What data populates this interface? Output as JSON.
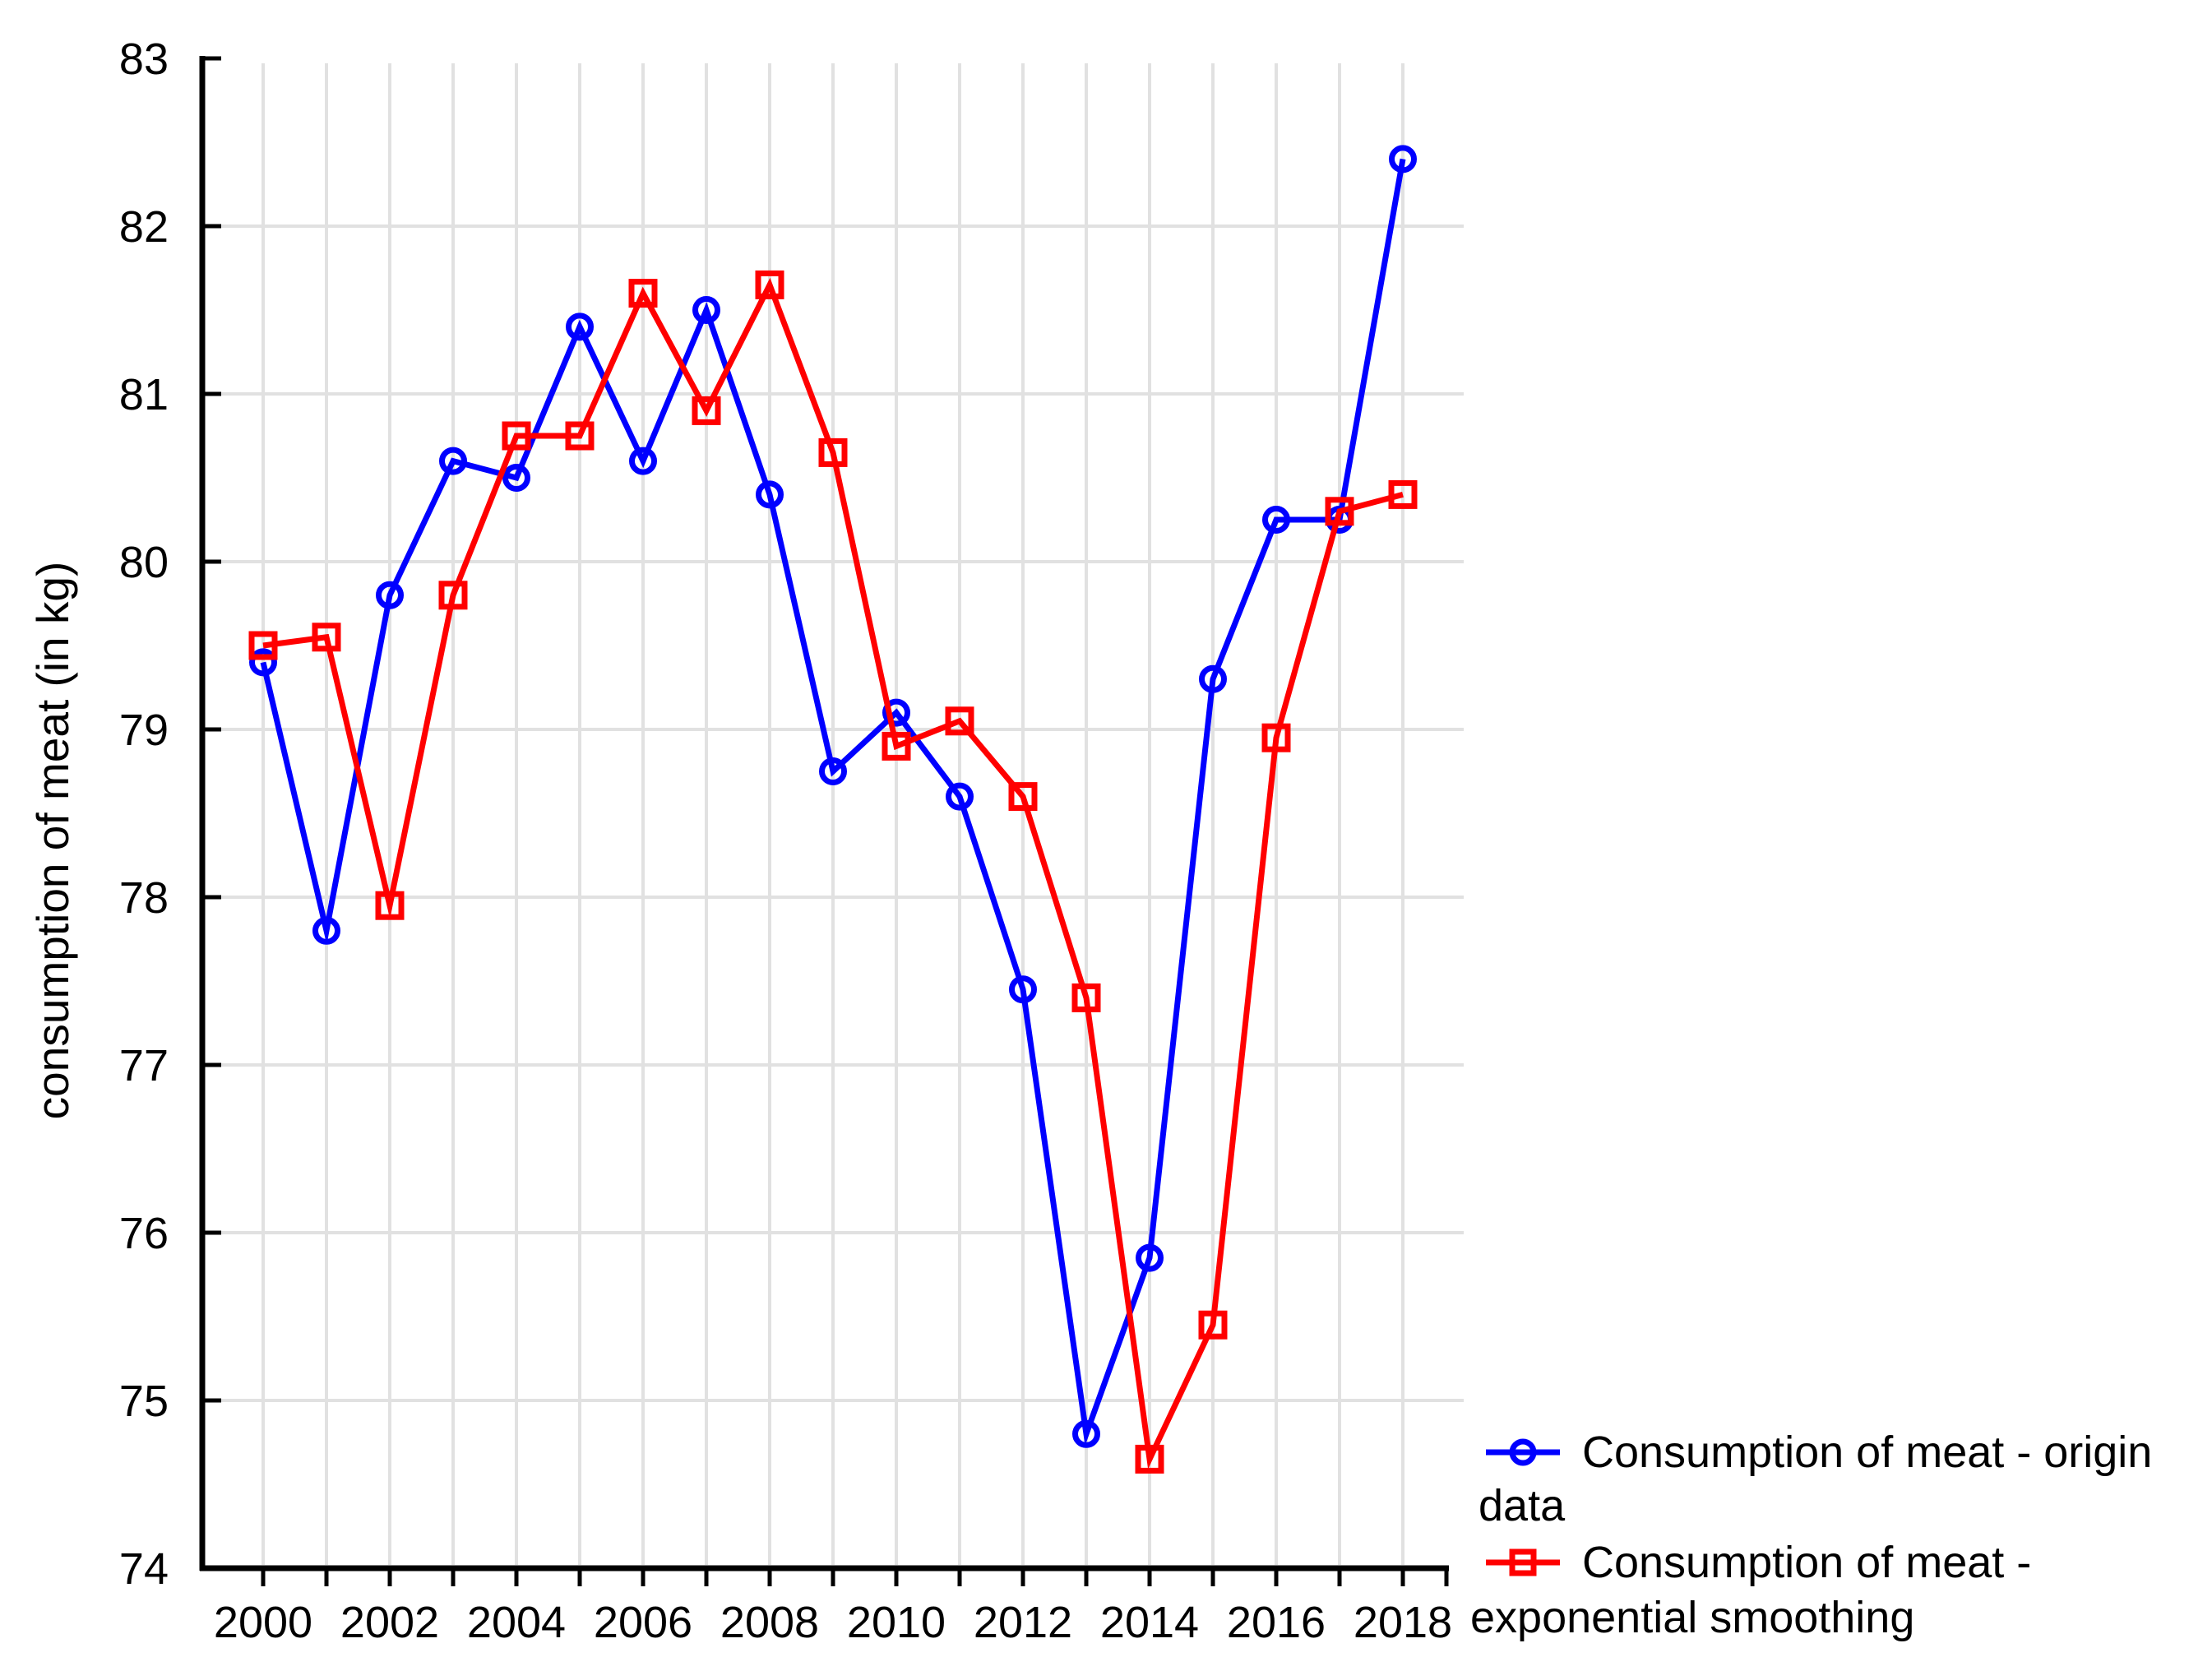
{
  "page": {
    "background": "#ffffff"
  },
  "chart_data": {
    "type": "line",
    "title": "",
    "xlabel": "",
    "ylabel": "consumption of meat (in kg)",
    "x": [
      2000,
      2001,
      2002,
      2003,
      2004,
      2005,
      2006,
      2007,
      2008,
      2009,
      2010,
      2011,
      2012,
      2013,
      2014,
      2015,
      2016,
      2017,
      2018
    ],
    "x_labeled_ticks": [
      2000,
      2002,
      2004,
      2006,
      2008,
      2010,
      2012,
      2014,
      2016,
      2018
    ],
    "x_tick_labels": [
      "2000",
      "2002",
      "2004",
      "2006",
      "2008",
      "2010",
      "2012",
      "2014",
      "2016",
      "2018"
    ],
    "y_ticks": [
      74,
      75,
      76,
      77,
      78,
      79,
      80,
      81,
      82,
      83
    ],
    "y_tick_labels": [
      "74",
      "75",
      "76",
      "77",
      "78",
      "79",
      "80",
      "81",
      "82",
      "83"
    ],
    "ylim": [
      74,
      83
    ],
    "grid": true,
    "legend_position": "bottom-right",
    "series": [
      {
        "name": "Consumption of meat - origin data",
        "color": "#0000ff",
        "marker": "circle",
        "values": [
          79.4,
          77.8,
          79.8,
          80.6,
          80.5,
          81.4,
          80.6,
          81.5,
          80.4,
          78.75,
          79.1,
          78.6,
          77.45,
          74.8,
          75.85,
          79.3,
          80.25,
          80.25,
          82.4
        ]
      },
      {
        "name": "Consumption of meat - exponential smoothing",
        "color": "#ff0000",
        "marker": "square",
        "values": [
          79.5,
          79.55,
          77.95,
          79.8,
          80.75,
          80.75,
          81.6,
          80.9,
          81.65,
          80.65,
          78.9,
          79.05,
          78.6,
          77.4,
          74.65,
          75.45,
          78.95,
          80.3,
          80.4
        ]
      }
    ]
  },
  "legend": {
    "entries": [
      {
        "lines": [
          "Consumption of meat - origin",
          "data"
        ]
      },
      {
        "lines": [
          "Consumption of meat -",
          "exponential smoothing"
        ]
      }
    ]
  },
  "colors": {
    "series_origin": "#0000ff",
    "series_smoothing": "#ff0000",
    "grid": "#e1e1e1",
    "axis": "#000000",
    "text": "#000000"
  }
}
